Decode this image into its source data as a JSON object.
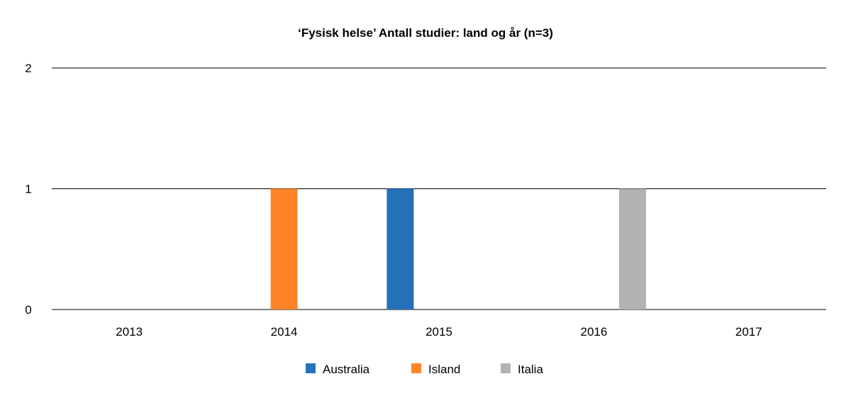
{
  "chart_data": {
    "type": "bar",
    "title": "‘Fysisk helse’ Antall studier: land og år (n=3)",
    "xlabel": "",
    "ylabel": "",
    "categories": [
      "2013",
      "2014",
      "2015",
      "2016",
      "2017"
    ],
    "series": [
      {
        "name": "Australia",
        "color": "#2471BA",
        "values": [
          0,
          0,
          1,
          0,
          0
        ]
      },
      {
        "name": "Island",
        "color": "#FF8427",
        "values": [
          0,
          1,
          0,
          0,
          0
        ]
      },
      {
        "name": "Italia",
        "color": "#B2B2B2",
        "values": [
          0,
          0,
          0,
          1,
          0
        ]
      }
    ],
    "ylim": [
      0,
      2
    ],
    "yticks": [
      "0",
      "1",
      "2"
    ],
    "grid": true,
    "legend": "bottom"
  }
}
